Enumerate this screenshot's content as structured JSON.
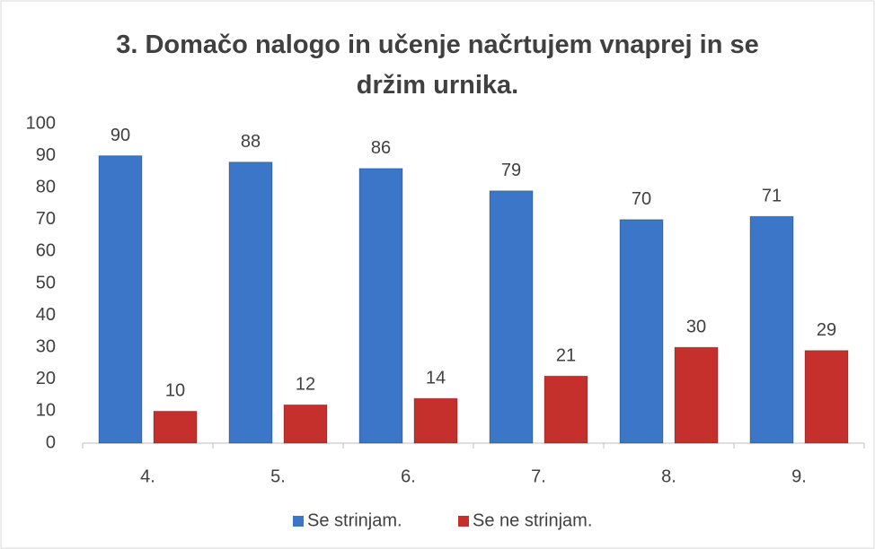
{
  "chart_data": {
    "type": "bar",
    "title": "3. Domačo nalogo in učenje načrtujem vnaprej in se držim urnika.",
    "categories": [
      "4.",
      "5.",
      "6.",
      "7.",
      "8.",
      "9."
    ],
    "series": [
      {
        "name": "Se strinjam.",
        "color": "#3b76c8",
        "values": [
          90,
          88,
          86,
          79,
          70,
          71
        ]
      },
      {
        "name": "Se ne strinjam.",
        "color": "#c5302d",
        "values": [
          10,
          12,
          14,
          21,
          30,
          29
        ]
      }
    ],
    "ylim": [
      0,
      100
    ],
    "yticks": [
      0,
      10,
      20,
      30,
      40,
      50,
      60,
      70,
      80,
      90,
      100
    ],
    "grid": false,
    "legend": "bottom"
  }
}
